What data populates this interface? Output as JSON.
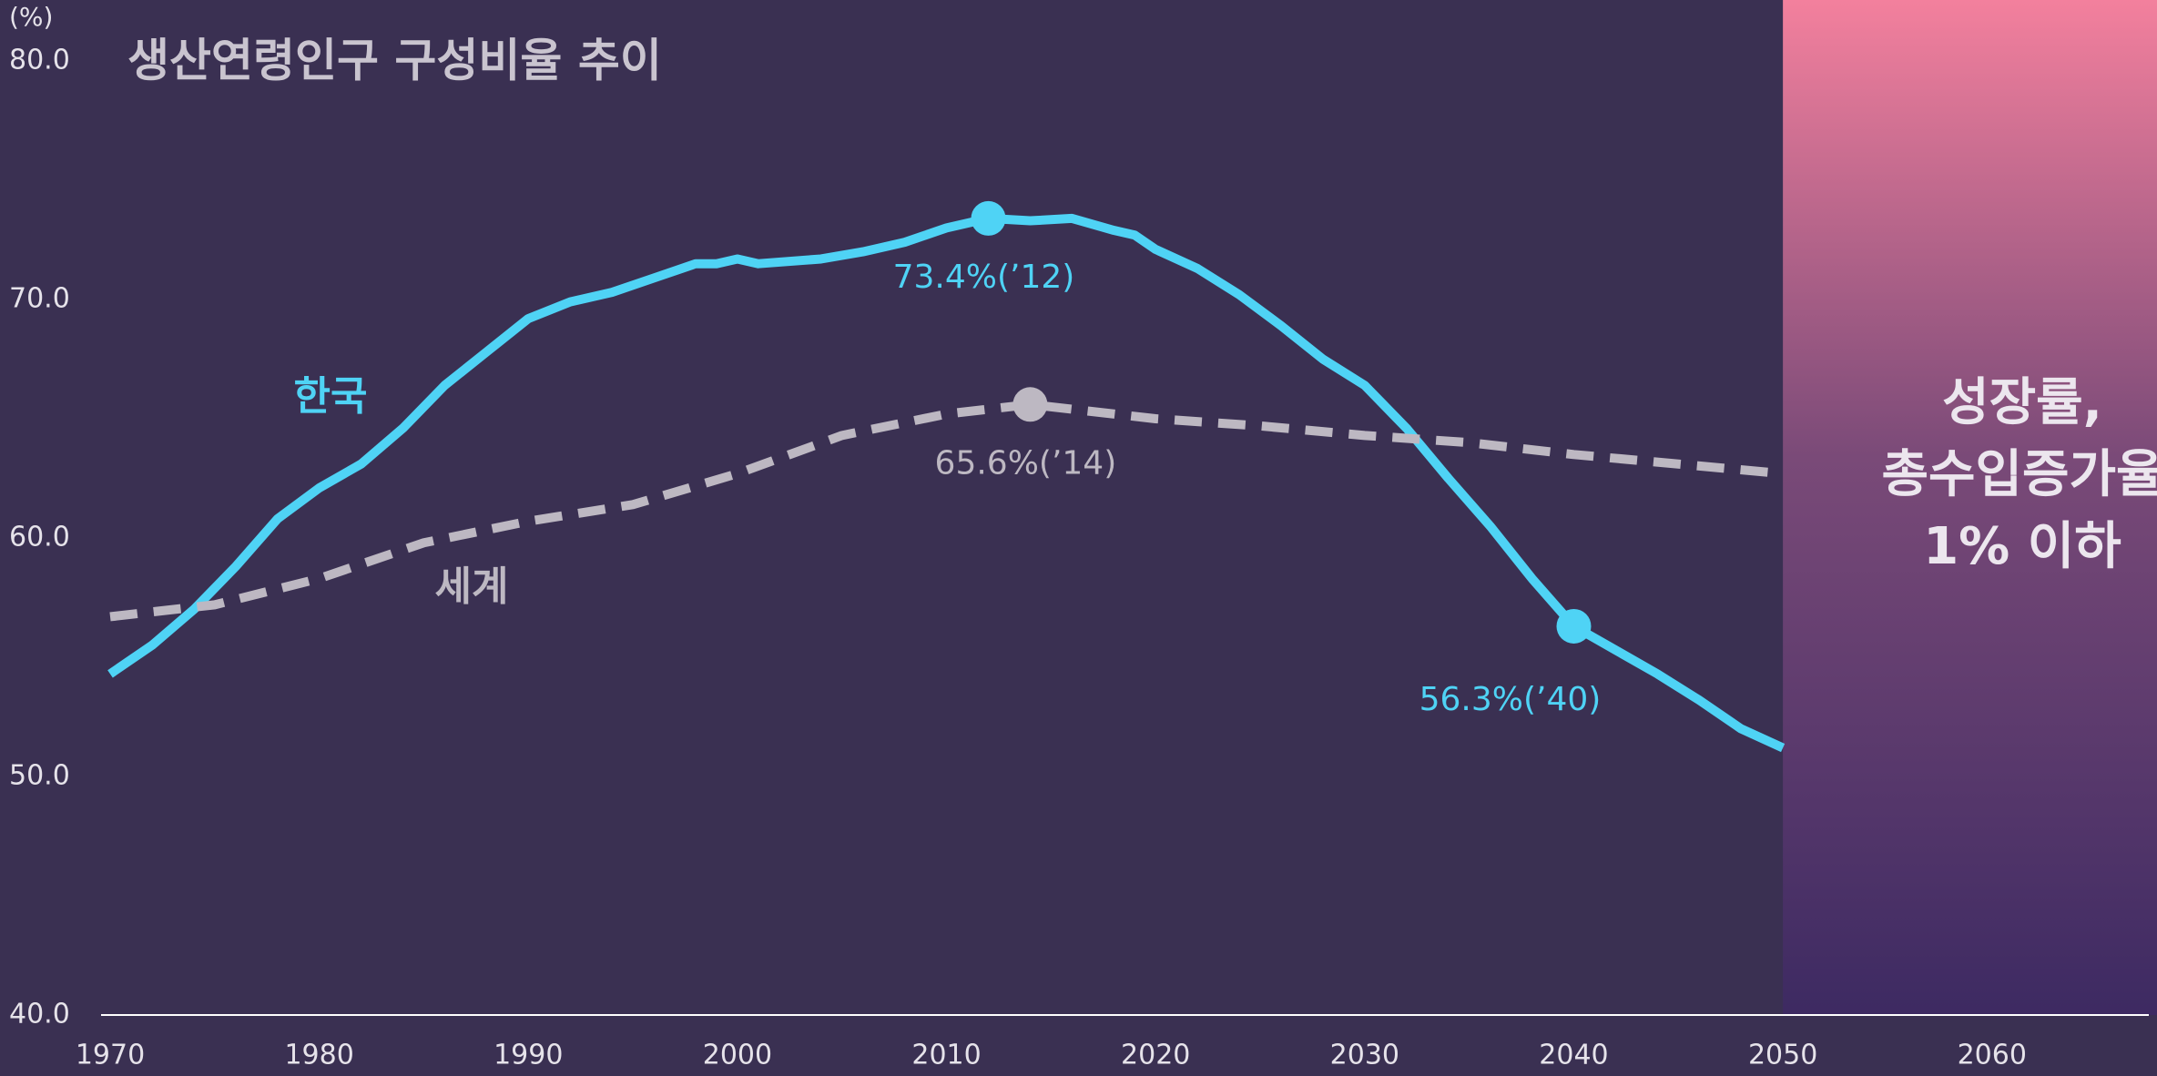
{
  "chart_data": {
    "type": "line",
    "title": "생산연령인구 구성비율 추이",
    "y_label": "(%)",
    "xlim": [
      1970,
      2067.5
    ],
    "xticks": [
      1970,
      1980,
      1990,
      2000,
      2010,
      2020,
      2030,
      2040,
      2050,
      2060
    ],
    "ylim": [
      40,
      80
    ],
    "yticks": [
      {
        "value": 40,
        "label": "40.0"
      },
      {
        "value": 50,
        "label": "50.0"
      },
      {
        "value": 60,
        "label": "60.0"
      },
      {
        "value": 70,
        "label": "70.0"
      },
      {
        "value": 80,
        "label": "80.0"
      }
    ],
    "series": [
      {
        "name": "한국",
        "color": "#4fd3f5",
        "dashed": false,
        "x": [
          1970,
          1972,
          1974,
          1976,
          1978,
          1980,
          1982,
          1984,
          1986,
          1988,
          1990,
          1992,
          1994,
          1996,
          1998,
          1999,
          2000,
          2001,
          2004,
          2006,
          2008,
          2010,
          2012,
          2014,
          2016,
          2018,
          2019,
          2020,
          2022,
          2024,
          2026,
          2028,
          2030,
          2032,
          2034,
          2036,
          2038,
          2040,
          2042,
          2044,
          2046,
          2048,
          2050
        ],
        "values": [
          54.3,
          55.5,
          57.0,
          58.8,
          60.8,
          62.1,
          63.1,
          64.6,
          66.4,
          67.8,
          69.2,
          69.9,
          70.3,
          70.9,
          71.5,
          71.5,
          71.7,
          71.5,
          71.7,
          72.0,
          72.4,
          73.0,
          73.4,
          73.3,
          73.4,
          72.9,
          72.7,
          72.1,
          71.3,
          70.2,
          68.9,
          67.5,
          66.4,
          64.6,
          62.5,
          60.5,
          58.3,
          56.3,
          55.3,
          54.3,
          53.2,
          52.0,
          51.2
        ],
        "value_labels": [
          null,
          null,
          null,
          null,
          null,
          null,
          null,
          null,
          null,
          null,
          null,
          null,
          null,
          null,
          null,
          null,
          null,
          null,
          null,
          null,
          null,
          null,
          "73.4%(’12)",
          null,
          null,
          null,
          null,
          null,
          null,
          null,
          null,
          null,
          null,
          null,
          null,
          null,
          null,
          "56.3%(’40)",
          null,
          null,
          null,
          null,
          null
        ]
      },
      {
        "name": "세계",
        "color": "#bdb8c2",
        "dashed": true,
        "x": [
          1970,
          1975,
          1980,
          1985,
          1990,
          1995,
          2000,
          2005,
          2010,
          2014,
          2020,
          2025,
          2030,
          2035,
          2040,
          2045,
          2050
        ],
        "values": [
          56.7,
          57.2,
          58.3,
          59.8,
          60.7,
          61.4,
          62.7,
          64.3,
          65.2,
          65.6,
          65.0,
          64.7,
          64.3,
          64.0,
          63.5,
          63.1,
          62.7
        ],
        "value_labels": [
          null,
          null,
          null,
          null,
          null,
          null,
          null,
          null,
          null,
          "65.6%(’14)",
          null,
          null,
          null,
          null,
          null,
          null,
          null
        ]
      }
    ],
    "shade": {
      "from": 2050,
      "text": [
        "성장률,",
        "총수입증가율",
        "1% 이하"
      ]
    }
  }
}
